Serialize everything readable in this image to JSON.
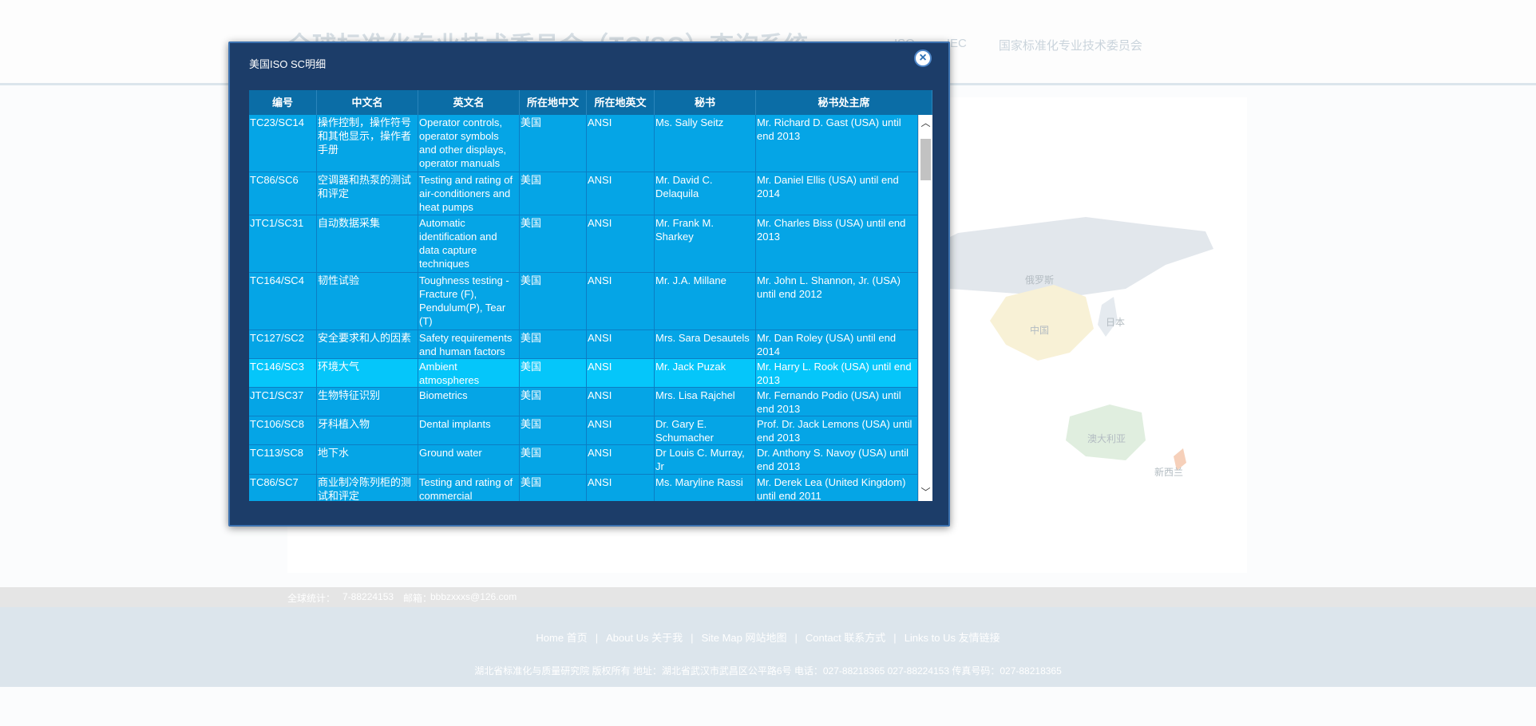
{
  "header": {
    "title": "全球标准化专业技术委员会（TC/SC）查询系统",
    "nav": [
      "ISO",
      "IEC",
      "国家标准化专业技术委员会"
    ]
  },
  "map": {
    "labels": [
      "俄罗斯",
      "中国",
      "日本",
      "澳大利亚",
      "新西兰"
    ]
  },
  "stats": {
    "label": "全球统计：",
    "phone": "7-88224153",
    "email_label": "邮箱：",
    "email": "bbbzxxxs@126.com"
  },
  "footer": {
    "links": [
      "Home 首页",
      "About Us 关于我",
      "Site Map 网站地图",
      "Contact 联系方式",
      "Links to Us 友情链接"
    ],
    "separator": "|",
    "copyright": "湖北省标准化与质量研究院 版权所有 地址：湖北省武汉市武昌区公平路6号 电话：027-88218365 027-88224153 传真号码：027-88218365"
  },
  "modal": {
    "title": "美国ISO SC明细",
    "close_label": "×",
    "columns": [
      "编号",
      "中文名",
      "英文名",
      "所在地中文",
      "所在地英文",
      "秘书",
      "秘书处主席"
    ],
    "rows": [
      [
        "TC23/SC14",
        "操作控制，操作符号和其他显示，操作者手册",
        "Operator controls, operator symbols and other displays, operator manuals",
        "美国",
        "ANSI",
        "Ms. Sally Seitz",
        "Mr. Richard D. Gast (USA) until end 2013"
      ],
      [
        "TC86/SC6",
        "空调器和热泵的测试和评定",
        "Testing and rating of air-conditioners and heat pumps",
        "美国",
        "ANSI",
        "Mr. David C. Delaquila",
        "Mr. Daniel Ellis (USA) until end 2014"
      ],
      [
        "JTC1/SC31",
        "自动数据采集",
        "Automatic identification and data capture techniques",
        "美国",
        "ANSI",
        "Mr. Frank M. Sharkey",
        "Mr. Charles Biss (USA) until end 2013"
      ],
      [
        "TC164/SC4",
        "韧性试验",
        "Toughness testing - Fracture (F), Pendulum(P), Tear (T)",
        "美国",
        "ANSI",
        "Mr. J.A. Millane",
        "Mr. John L. Shannon, Jr. (USA) until end 2012"
      ],
      [
        "TC127/SC2",
        "安全要求和人的因素",
        "Safety requirements and human factors",
        "美国",
        "ANSI",
        "Mrs. Sara Desautels",
        "Mr. Dan Roley (USA) until end 2014"
      ],
      [
        "TC146/SC3",
        "环境大气",
        "Ambient atmospheres",
        "美国",
        "ANSI",
        "Mr. Jack Puzak",
        "Mr. Harry L. Rook (USA) until end 2013"
      ],
      [
        "JTC1/SC37",
        "生物特征识别",
        "Biometrics",
        "美国",
        "ANSI",
        "Mrs. Lisa Rajchel",
        "Mr. Fernando Podio (USA) until end 2013"
      ],
      [
        "TC106/SC8",
        "牙科植入物",
        "Dental implants",
        "美国",
        "ANSI",
        "Dr. Gary E. Schumacher",
        "Prof. Dr. Jack Lemons (USA) until end 2013"
      ],
      [
        "TC113/SC8",
        "地下水",
        "Ground water",
        "美国",
        "ANSI",
        "Dr Louis C. Murray, Jr",
        "Dr. Anthony S. Navoy (USA) until end 2013"
      ],
      [
        "TC86/SC7",
        "商业制冷陈列柜的测试和评定",
        "Testing and rating of commercial refrigerated display",
        "美国",
        "ANSI",
        "Ms. Maryline Rassi",
        "Mr. Derek Lea (United Kingdom) until end 2011"
      ]
    ],
    "highlighted_row": 5
  }
}
